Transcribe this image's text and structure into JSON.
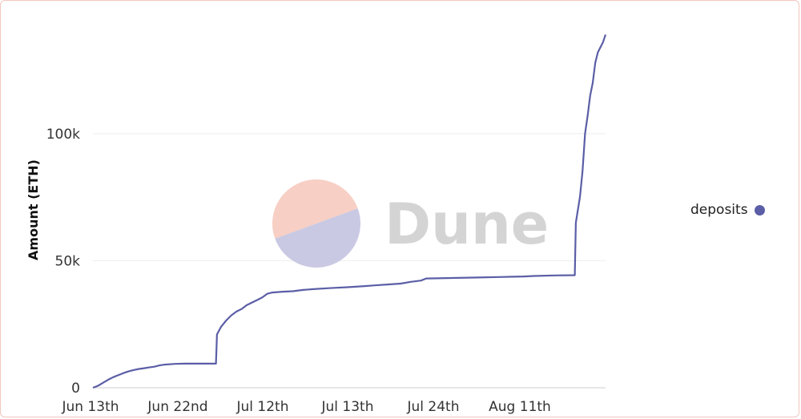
{
  "title": "",
  "watermark": {
    "text": "Dune"
  },
  "colors": {
    "series": "#5b5ea6",
    "grid": "#eeeeee",
    "watermark_top": "#f7cfc4",
    "watermark_bottom": "#c9c9e3",
    "watermark_text": "#d4d4d4"
  },
  "chart_data": {
    "type": "line",
    "title": "",
    "xlabel": "",
    "ylabel": "Amount (ETH)",
    "ylim": [
      0,
      140000
    ],
    "yticks": [
      {
        "value": 0,
        "label": "0"
      },
      {
        "value": 50000,
        "label": "50k"
      },
      {
        "value": 100000,
        "label": "100k"
      }
    ],
    "xticks": [
      "Jun 13th",
      "Jun 22nd",
      "Jul 12th",
      "Jul 13th",
      "Jul 24th",
      "Aug 11th"
    ],
    "xlim": [
      0,
      100
    ],
    "grid": true,
    "legend": "right",
    "series": [
      {
        "name": "deposits",
        "points": [
          [
            0,
            0
          ],
          [
            1,
            800
          ],
          [
            2,
            2000
          ],
          [
            3,
            3200
          ],
          [
            4,
            4200
          ],
          [
            5,
            5000
          ],
          [
            6,
            5800
          ],
          [
            7,
            6500
          ],
          [
            8,
            7000
          ],
          [
            9,
            7400
          ],
          [
            10,
            7700
          ],
          [
            11,
            8000
          ],
          [
            12,
            8300
          ],
          [
            13,
            8800
          ],
          [
            14,
            9100
          ],
          [
            16,
            9400
          ],
          [
            18,
            9500
          ],
          [
            20,
            9500
          ],
          [
            22,
            9500
          ],
          [
            24,
            9500
          ],
          [
            24.2,
            21000
          ],
          [
            25,
            24000
          ],
          [
            26,
            26500
          ],
          [
            27,
            28500
          ],
          [
            28,
            30000
          ],
          [
            29,
            31000
          ],
          [
            30,
            32500
          ],
          [
            31,
            33500
          ],
          [
            32,
            34500
          ],
          [
            33,
            35500
          ],
          [
            34,
            37000
          ],
          [
            35,
            37500
          ],
          [
            37,
            37800
          ],
          [
            39,
            38000
          ],
          [
            41,
            38500
          ],
          [
            43,
            38800
          ],
          [
            46,
            39200
          ],
          [
            50,
            39600
          ],
          [
            53,
            40000
          ],
          [
            55,
            40300
          ],
          [
            58,
            40700
          ],
          [
            60,
            41000
          ],
          [
            62,
            41700
          ],
          [
            64,
            42200
          ],
          [
            65,
            43000
          ],
          [
            70,
            43200
          ],
          [
            75,
            43400
          ],
          [
            80,
            43600
          ],
          [
            84,
            43800
          ],
          [
            86,
            44000
          ],
          [
            90,
            44200
          ],
          [
            94,
            44300
          ],
          [
            94.2,
            65000
          ],
          [
            95,
            75000
          ],
          [
            95.5,
            85000
          ],
          [
            96,
            100000
          ],
          [
            96.5,
            107000
          ],
          [
            97,
            115000
          ],
          [
            97.5,
            120000
          ],
          [
            98,
            128000
          ],
          [
            98.5,
            132000
          ],
          [
            99,
            134000
          ],
          [
            99.5,
            136000
          ],
          [
            100,
            139000
          ]
        ]
      }
    ]
  }
}
